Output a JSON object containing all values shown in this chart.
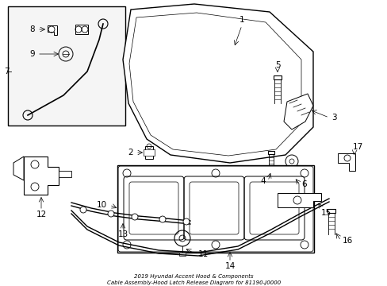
{
  "fig_width": 4.89,
  "fig_height": 3.6,
  "dpi": 100,
  "background_color": "#ffffff",
  "line_color": "#000000",
  "title_line1": "2019 Hyundai Accent Hood & Components",
  "title_line2": "Cable Assembly-Hood Latch Release Diagram for 81190-J0000"
}
